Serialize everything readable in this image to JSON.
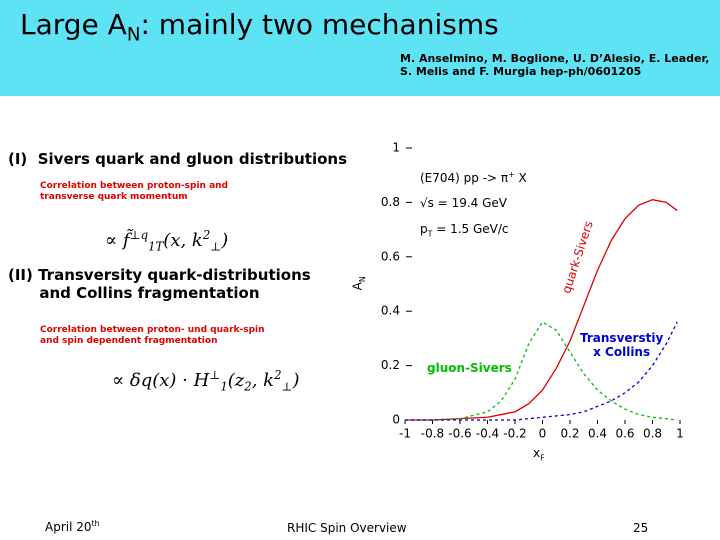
{
  "header": {
    "title": [
      {
        "text": "Large A"
      },
      {
        "sub": "N"
      },
      {
        "text": ": mainly two mechanisms"
      }
    ],
    "reference": [
      "M. Anselmino, M. Boglione, U. D’Alesio, E. Leader,",
      "S. Melis and F. Murgia hep-ph/0601205"
    ]
  },
  "sections": [
    {
      "heading": [
        "(I)  Sivers quark and gluon distributions"
      ],
      "note": [
        "Correlation between proton-spin and",
        "transverse quark momentum"
      ],
      "formula": [
        {
          "text": "∝ f̃"
        },
        {
          "sup": "⊥q"
        },
        {
          "sub": "1T"
        },
        {
          "text": "(x, k"
        },
        {
          "sup": "2"
        },
        {
          "sub": "⊥"
        },
        {
          "text": ")"
        }
      ]
    },
    {
      "heading": [
        "(II) Transversity quark-distributions",
        "      and Collins fragmentation"
      ],
      "note": [
        "Correlation between proton- und quark-spin",
        "and spin dependent fragmentation"
      ],
      "formula": [
        {
          "text": "∝ δq(x) · H"
        },
        {
          "sup": "⊥"
        },
        {
          "sub": "1"
        },
        {
          "text": "(z"
        },
        {
          "sub": "2"
        },
        {
          "text": ", k"
        },
        {
          "sup": "2"
        },
        {
          "sub": "⊥"
        },
        {
          "text": ")"
        }
      ]
    }
  ],
  "chart": {
    "type": "line",
    "x": [
      -1,
      -0.8,
      -0.6,
      -0.4,
      -0.3,
      -0.2,
      -0.1,
      0,
      0.1,
      0.2,
      0.3,
      0.4,
      0.5,
      0.6,
      0.7,
      0.8,
      0.9,
      0.98
    ],
    "series": [
      {
        "label": [
          "quark-Sivers"
        ],
        "color": "#e00000",
        "dash": false,
        "values": [
          0,
          0,
          0.005,
          0.01,
          0.02,
          0.03,
          0.06,
          0.11,
          0.19,
          0.29,
          0.42,
          0.55,
          0.66,
          0.74,
          0.79,
          0.81,
          0.8,
          0.77
        ]
      },
      {
        "label": [
          "gluon-Sivers"
        ],
        "color": "#00c000",
        "dash": true,
        "values": [
          0,
          0,
          0.005,
          0.03,
          0.07,
          0.15,
          0.28,
          0.36,
          0.33,
          0.25,
          0.17,
          0.11,
          0.07,
          0.04,
          0.02,
          0.01,
          0.005,
          0
        ]
      },
      {
        "label": [
          "Transverstiy",
          "x Collins"
        ],
        "color": "#0000d0",
        "dash": true,
        "values": [
          0,
          0,
          0,
          0,
          0,
          0,
          0.005,
          0.01,
          0.015,
          0.02,
          0.03,
          0.05,
          0.07,
          0.1,
          0.14,
          0.2,
          0.28,
          0.36
        ]
      }
    ],
    "xlim": [
      -1,
      1
    ],
    "ylim": [
      0,
      1
    ],
    "xticks": [
      -1,
      -0.8,
      -0.6,
      -0.4,
      -0.2,
      0,
      0.2,
      0.4,
      0.6,
      0.8,
      1
    ],
    "yticks": [
      0,
      0.2,
      0.4,
      0.6,
      0.8,
      1
    ],
    "x_label": [
      {
        "text": "x"
      },
      {
        "sub": "F"
      }
    ],
    "y_label": [
      {
        "text": "A"
      },
      {
        "sub": "N"
      }
    ],
    "annotations": [
      [
        {
          "text": "(E704) pp -> π"
        },
        {
          "sup": "+"
        },
        {
          "text": " X"
        }
      ],
      [
        {
          "text": "√s = 19.4 GeV"
        }
      ],
      [
        {
          "text": "p"
        },
        {
          "sub": "T"
        },
        {
          "text": " = 1.5 GeV/c"
        }
      ]
    ]
  },
  "footer": {
    "date": [
      {
        "text": "April 20"
      },
      {
        "sup": "th"
      }
    ],
    "title": "RHIC Spin Overview",
    "page": "25"
  }
}
